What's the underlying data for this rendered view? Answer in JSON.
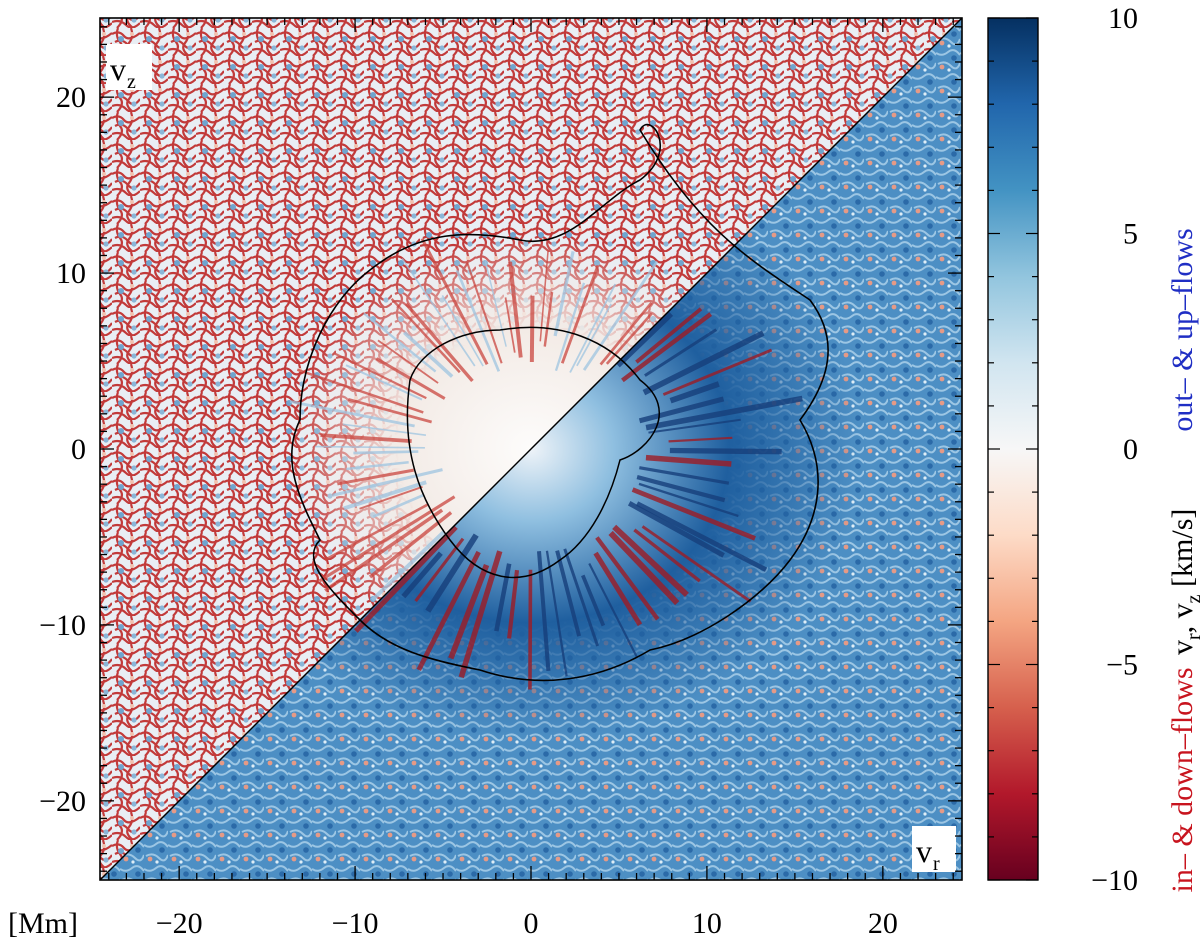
{
  "chart_data": {
    "type": "heatmap",
    "panel_labels": {
      "upper_left": "v",
      "upper_left_sub": "z",
      "lower_right": "v",
      "lower_right_sub": "r"
    },
    "axis_unit_label": "[Mm]",
    "xlim": [
      -24.5,
      24.5
    ],
    "ylim": [
      -24.5,
      24.5
    ],
    "xticks": [
      -20,
      -10,
      0,
      10,
      20
    ],
    "yticks": [
      -20,
      -10,
      0,
      10,
      20
    ],
    "xtick_labels": [
      "−20",
      "−10",
      "0",
      "10",
      "20"
    ],
    "ytick_labels": [
      "−20",
      "−10",
      "0",
      "10",
      "20"
    ],
    "colorbar": {
      "range": [
        -10,
        10
      ],
      "ticks": [
        -10,
        -5,
        0,
        5,
        10
      ],
      "tick_labels": [
        "−10",
        "−5",
        "0",
        "5",
        "10"
      ],
      "label_main": "v",
      "label_sub1": "r",
      "label_mid": ", v",
      "label_sub2": "z",
      "label_unit": " [km/s]",
      "label_positive": "out– & up–flows",
      "label_negative": "in– & down–flows",
      "colors": [
        "#67001f",
        "#b2182b",
        "#d6604d",
        "#f4a582",
        "#fddbc7",
        "#f7f7f7",
        "#d1e5f0",
        "#92c5de",
        "#4393c3",
        "#2166ac",
        "#053061"
      ],
      "positive_color": "#1f2ec4",
      "negative_color": "#c8141e"
    },
    "diagonal_split": true,
    "contour_color": "#000000"
  }
}
